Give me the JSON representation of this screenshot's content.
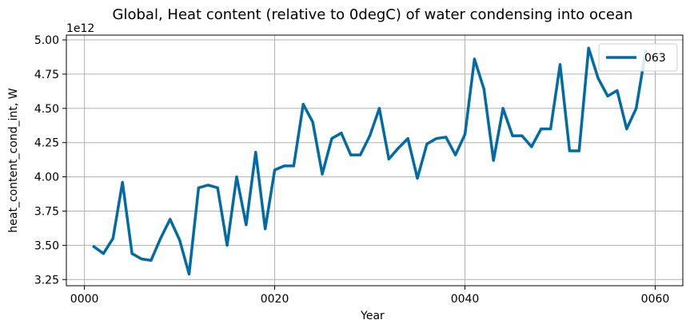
{
  "chart_data": {
    "type": "line",
    "title": "Global, Heat content (relative to 0degC) of water condensing into ocean",
    "xlabel": "Year",
    "ylabel": "heat_content_cond_int, W",
    "y_offset_text": "1e12",
    "xlim": [
      -1.9,
      62.9
    ],
    "ylim": [
      3.205,
      5.035
    ],
    "x_ticks": [
      0,
      20,
      40,
      60
    ],
    "x_tick_labels": [
      "0000",
      "0020",
      "0040",
      "0060"
    ],
    "y_ticks": [
      3.25,
      3.5,
      3.75,
      4.0,
      4.25,
      4.5,
      4.75,
      5.0
    ],
    "y_tick_labels": [
      "3.25",
      "3.50",
      "3.75",
      "4.00",
      "4.25",
      "4.50",
      "4.75",
      "5.00"
    ],
    "grid": true,
    "legend_position": "top-right",
    "series": [
      {
        "name": "063",
        "color": "#006ba4",
        "x": [
          1,
          2,
          3,
          4,
          5,
          6,
          7,
          8,
          9,
          10,
          11,
          12,
          13,
          14,
          15,
          16,
          17,
          18,
          19,
          20,
          21,
          22,
          23,
          24,
          25,
          26,
          27,
          28,
          29,
          30,
          31,
          32,
          33,
          34,
          35,
          36,
          37,
          38,
          39,
          40,
          41,
          42,
          43,
          44,
          45,
          46,
          47,
          48,
          49,
          50,
          51,
          52,
          53,
          54,
          55,
          56,
          57,
          58,
          59
        ],
        "y": [
          3.49,
          3.44,
          3.55,
          3.96,
          3.44,
          3.4,
          3.39,
          3.55,
          3.69,
          3.54,
          3.29,
          3.92,
          3.94,
          3.92,
          3.5,
          4.0,
          3.65,
          4.18,
          3.62,
          4.05,
          4.08,
          4.08,
          4.53,
          4.4,
          4.02,
          4.28,
          4.32,
          4.16,
          4.16,
          4.3,
          4.5,
          4.13,
          4.21,
          4.28,
          3.99,
          4.24,
          4.28,
          4.29,
          4.16,
          4.31,
          4.86,
          4.64,
          4.12,
          4.5,
          4.3,
          4.3,
          4.22,
          4.35,
          4.35,
          4.82,
          4.19,
          4.19,
          4.94,
          4.72,
          4.59,
          4.63,
          4.35,
          4.5,
          4.92
        ]
      }
    ]
  }
}
